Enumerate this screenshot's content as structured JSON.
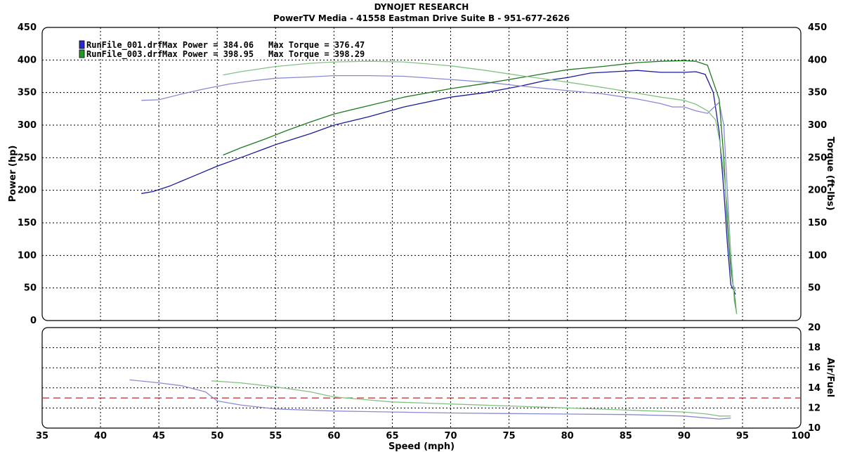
{
  "header": {
    "title": "DYNOJET RESEARCH",
    "subtitle": "PowerTV Media - 41558 Eastman Drive Suite B - 951-677-2626"
  },
  "colors": {
    "run1_power": "#1c1c9c",
    "run1_torque": "#8a8ad2",
    "run2_power": "#1f7a22",
    "run2_torque": "#82c282",
    "afr_ref": "#c02828",
    "grid": "#000000",
    "frame": "#000000"
  },
  "chart_data": [
    {
      "type": "line",
      "title": "",
      "xlabel": "Speed (mph)",
      "ylabel": "Power (hp)",
      "y2label": "Torque (ft-lbs)",
      "xlim": [
        35,
        100
      ],
      "ylim": [
        0,
        450
      ],
      "y2lim": [
        0,
        450
      ],
      "x_ticks": [
        35,
        40,
        45,
        50,
        55,
        60,
        65,
        70,
        75,
        80,
        85,
        90,
        95,
        100
      ],
      "y_ticks": [
        0,
        50,
        100,
        150,
        200,
        250,
        300,
        350,
        400,
        450
      ],
      "y2_ticks": [
        50,
        100,
        150,
        200,
        250,
        300,
        350,
        400,
        450
      ],
      "grid": true,
      "legend_position": "top-left",
      "legend": [
        {
          "file": "RunFile_001.drf",
          "max_power_label": "Max Power = 384.06",
          "max_torque_label": "Max Torque = 376.47",
          "color": "#2a2ad0"
        },
        {
          "file": "RunFile_003.drf",
          "max_power_label": "Max Power = 398.95",
          "max_torque_label": "Max Torque = 398.29",
          "color": "#1f9a22"
        }
      ],
      "series": [
        {
          "run": "RunFile_001.drf",
          "kind": "power",
          "axis": "left",
          "color": "#1c1c9c",
          "x": [
            43.5,
            44.5,
            46,
            48,
            50,
            52,
            55,
            58,
            60,
            63,
            66,
            70,
            73,
            76,
            78,
            80,
            82,
            84,
            86,
            88,
            90,
            91,
            91.8,
            92.5,
            93,
            93.4,
            93.7,
            94,
            94.2,
            94.4
          ],
          "y": [
            195,
            198,
            207,
            222,
            237,
            250,
            270,
            287,
            300,
            313,
            328,
            343,
            350,
            360,
            368,
            373,
            380,
            382,
            384,
            381,
            381,
            382,
            378,
            350,
            290,
            200,
            120,
            55,
            48,
            40
          ]
        },
        {
          "run": "RunFile_001.drf",
          "kind": "torque",
          "axis": "right",
          "color": "#8a8ad2",
          "x": [
            43.5,
            45,
            47,
            49,
            51,
            53,
            55,
            58,
            60,
            63,
            66,
            70,
            73,
            76,
            80,
            83,
            86,
            88,
            89,
            90,
            91,
            92,
            93,
            93.4,
            93.7,
            94,
            94.2,
            94.4
          ],
          "y": [
            338,
            339,
            348,
            356,
            363,
            368,
            372,
            374,
            376,
            376,
            375,
            370,
            366,
            360,
            353,
            348,
            340,
            333,
            328,
            328,
            322,
            318,
            335,
            300,
            200,
            100,
            55,
            45
          ]
        },
        {
          "run": "RunFile_003.drf",
          "kind": "power",
          "axis": "left",
          "color": "#1f7a22",
          "x": [
            50.5,
            52,
            54,
            56,
            58,
            60,
            63,
            66,
            70,
            73,
            76,
            80,
            83,
            86,
            88,
            90,
            91,
            92,
            93,
            93.4,
            93.7,
            94,
            94.3,
            94.5
          ],
          "y": [
            254,
            265,
            278,
            292,
            305,
            317,
            330,
            343,
            356,
            364,
            373,
            385,
            390,
            396,
            398,
            399,
            398,
            392,
            340,
            250,
            150,
            80,
            40,
            10
          ]
        },
        {
          "run": "RunFile_003.drf",
          "kind": "torque",
          "axis": "right",
          "color": "#82c282",
          "x": [
            50.5,
            52,
            55,
            58,
            60,
            63,
            66,
            70,
            73,
            76,
            80,
            83,
            86,
            88,
            90,
            91,
            92,
            92.7,
            93.1,
            93.5,
            93.8,
            94.1,
            94.3,
            94.5
          ],
          "y": [
            377,
            382,
            390,
            395,
            397,
            398,
            397,
            391,
            384,
            376,
            366,
            358,
            349,
            343,
            338,
            332,
            322,
            308,
            270,
            210,
            150,
            80,
            30,
            10
          ]
        }
      ]
    },
    {
      "type": "line",
      "title": "",
      "xlabel": "Speed (mph)",
      "ylabel": "Air/Fuel",
      "xlim": [
        35,
        100
      ],
      "ylim": [
        10,
        20
      ],
      "x_ticks": [
        35,
        40,
        45,
        50,
        55,
        60,
        65,
        70,
        75,
        80,
        85,
        90,
        95,
        100
      ],
      "y_ticks": [
        10,
        12,
        14,
        16,
        18,
        20
      ],
      "grid": true,
      "reference_line": {
        "y": 13.0,
        "style": "dashed",
        "color": "#c02828"
      },
      "series": [
        {
          "run": "RunFile_001.drf",
          "kind": "afr",
          "color": "#8a8ad2",
          "x": [
            42.5,
            45,
            47,
            49,
            50,
            52,
            55,
            60,
            65,
            70,
            75,
            80,
            85,
            90,
            92,
            93,
            94
          ],
          "y": [
            14.8,
            14.5,
            14.2,
            13.6,
            12.7,
            12.3,
            11.9,
            11.7,
            11.6,
            11.5,
            11.45,
            11.4,
            11.35,
            11.2,
            11.0,
            10.9,
            11.0
          ]
        },
        {
          "run": "RunFile_003.drf",
          "kind": "afr",
          "color": "#82c282",
          "x": [
            49.5,
            52,
            55,
            58,
            60,
            63,
            65,
            70,
            75,
            80,
            85,
            90,
            92,
            93,
            94
          ],
          "y": [
            14.7,
            14.5,
            14.1,
            13.6,
            13.1,
            12.8,
            12.6,
            12.4,
            12.2,
            12.0,
            11.8,
            11.6,
            11.4,
            11.2,
            11.2
          ]
        }
      ]
    }
  ]
}
